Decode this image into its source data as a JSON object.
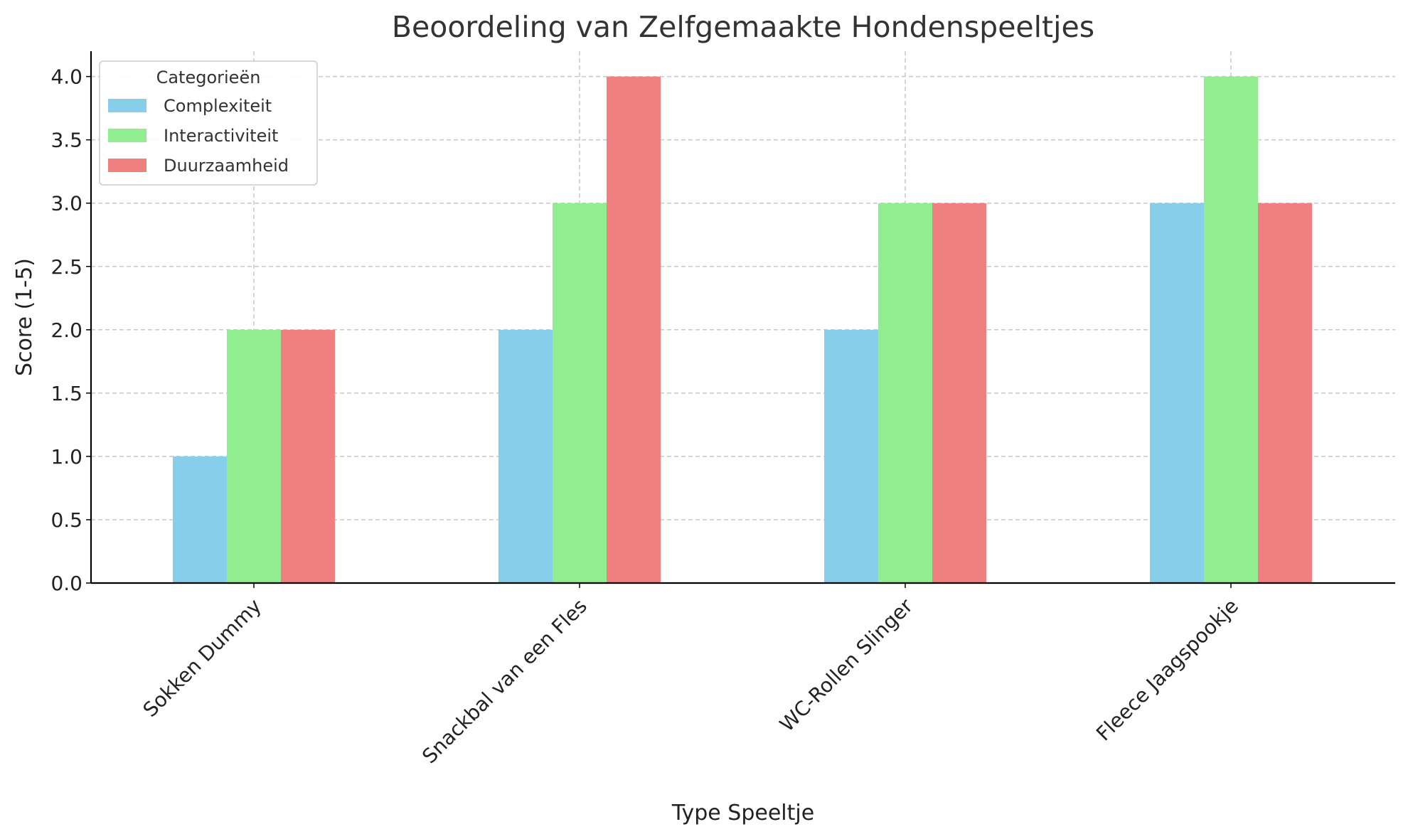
{
  "chart_data": {
    "type": "bar",
    "title": "Beoordeling van Zelfgemaakte Hondenspeeltjes",
    "xlabel": "Type Speeltje",
    "ylabel": "Score (1-5)",
    "categories": [
      "Sokken Dummy",
      "Snackbal van een Fles",
      "WC-Rollen Slinger",
      "Fleece Jaagspookje"
    ],
    "series": [
      {
        "name": "Complexiteit",
        "color": "#87ceeb",
        "values": [
          1,
          2,
          2,
          3
        ]
      },
      {
        "name": "Interactiviteit",
        "color": "#90ee90",
        "values": [
          2,
          3,
          3,
          4
        ]
      },
      {
        "name": "Duurzaamheid",
        "color": "#f08080",
        "values": [
          2,
          4,
          3,
          3
        ]
      }
    ],
    "ylim": [
      0,
      4.2
    ],
    "yticks": [
      0.0,
      0.5,
      1.0,
      1.5,
      2.0,
      2.5,
      3.0,
      3.5,
      4.0
    ],
    "ytick_labels": [
      "0.0",
      "0.5",
      "1.0",
      "1.5",
      "2.0",
      "2.5",
      "3.0",
      "3.5",
      "4.0"
    ],
    "grid": true,
    "legend": {
      "title": "Categorieën",
      "position": "top-left"
    }
  }
}
